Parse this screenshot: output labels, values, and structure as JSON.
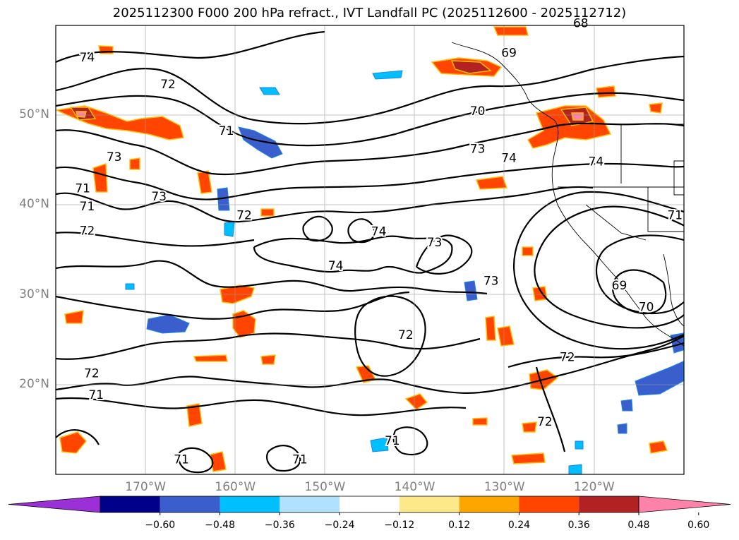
{
  "title": "2025112300 F000 200 hPa refract., IVT Landfall PC (2025112600 - 2025112712)",
  "axes": {
    "lat_ticks": [
      {
        "label": "50°N",
        "value": 50
      },
      {
        "label": "40°N",
        "value": 40
      },
      {
        "label": "30°N",
        "value": 30
      },
      {
        "label": "20°N",
        "value": 20
      }
    ],
    "lon_ticks": [
      {
        "label": "170°W",
        "value": -170
      },
      {
        "label": "160°W",
        "value": -160
      },
      {
        "label": "150°W",
        "value": -150
      },
      {
        "label": "140°W",
        "value": -140
      },
      {
        "label": "130°W",
        "value": -130
      },
      {
        "label": "120°W",
        "value": -120
      }
    ],
    "extent": {
      "lon_min": -180,
      "lon_max": -110,
      "lat_min": 10,
      "lat_max": 60
    }
  },
  "contour_labels": [
    {
      "text": "74",
      "lon": -176.5,
      "lat": 56.4
    },
    {
      "text": "72",
      "lon": -167.5,
      "lat": 53.4
    },
    {
      "text": "71",
      "lon": -161,
      "lat": 48.2
    },
    {
      "text": "73",
      "lon": -173.5,
      "lat": 45.3
    },
    {
      "text": "73",
      "lon": -168.5,
      "lat": 40.9
    },
    {
      "text": "71",
      "lon": -177,
      "lat": 41.8
    },
    {
      "text": "71",
      "lon": -176.5,
      "lat": 39.8
    },
    {
      "text": "72",
      "lon": -176.5,
      "lat": 37.1
    },
    {
      "text": "72",
      "lon": -159,
      "lat": 38.8
    },
    {
      "text": "74",
      "lon": -148.8,
      "lat": 33.2
    },
    {
      "text": "74",
      "lon": -144,
      "lat": 37
    },
    {
      "text": "73",
      "lon": -137.8,
      "lat": 35.8
    },
    {
      "text": "73",
      "lon": -131.5,
      "lat": 31.5
    },
    {
      "text": "72",
      "lon": -141,
      "lat": 25.5
    },
    {
      "text": "70",
      "lon": -133,
      "lat": 50.4
    },
    {
      "text": "69",
      "lon": -129.5,
      "lat": 56.9
    },
    {
      "text": "68",
      "lon": -121.5,
      "lat": 60.2
    },
    {
      "text": "73",
      "lon": -133,
      "lat": 46.2
    },
    {
      "text": "74",
      "lon": -129.5,
      "lat": 45.2
    },
    {
      "text": "74",
      "lon": -119.8,
      "lat": 44.8
    },
    {
      "text": "71",
      "lon": -111,
      "lat": 38.8
    },
    {
      "text": "69",
      "lon": -117.2,
      "lat": 31
    },
    {
      "text": "70",
      "lon": -114.2,
      "lat": 28.6
    },
    {
      "text": "72",
      "lon": -123,
      "lat": 23
    },
    {
      "text": "72",
      "lon": -125.5,
      "lat": 15.8
    },
    {
      "text": "72",
      "lon": -176,
      "lat": 21.2
    },
    {
      "text": "71",
      "lon": -175.5,
      "lat": 18.8
    },
    {
      "text": "71",
      "lon": -166,
      "lat": 11.6
    },
    {
      "text": "71",
      "lon": -152.8,
      "lat": 11.6
    },
    {
      "text": "71",
      "lon": -142.5,
      "lat": 13.7
    }
  ],
  "colorbar": {
    "colors": [
      "#9b30d6",
      "#00008b",
      "#3a5fcd",
      "#00bfff",
      "#b0e2ff",
      "#ffffff",
      "#fee98a",
      "#ffa500",
      "#ff4500",
      "#b22222",
      "#ff82ab"
    ],
    "tick_labels": [
      "−0.60",
      "−0.48",
      "−0.36",
      "−0.24",
      "−0.12",
      "0.12",
      "0.24",
      "0.36",
      "0.48",
      "0.60"
    ]
  }
}
